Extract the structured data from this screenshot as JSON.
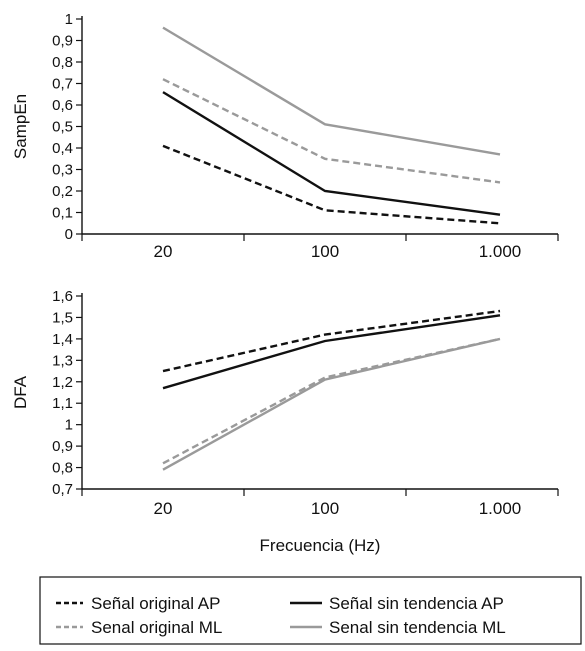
{
  "chart_data": [
    {
      "type": "line",
      "categories": [
        "20",
        "100",
        "1.000"
      ],
      "ylabel": "SampEn",
      "xlabel": "",
      "ylim": [
        0,
        1
      ],
      "yticks": [
        "0",
        "0,1",
        "0,2",
        "0,3",
        "0,4",
        "0,5",
        "0,6",
        "0,7",
        "0,8",
        "0,9",
        "1"
      ],
      "series": [
        {
          "name": "Señal original AP",
          "values": [
            0.41,
            0.11,
            0.05
          ],
          "color": "#111111",
          "dash": true
        },
        {
          "name": "Senal original ML",
          "values": [
            0.72,
            0.35,
            0.24
          ],
          "color": "#9a9a9a",
          "dash": true
        },
        {
          "name": "Señal sin tendencia AP",
          "values": [
            0.66,
            0.2,
            0.09
          ],
          "color": "#111111",
          "dash": false
        },
        {
          "name": "Senal sin tendencia ML",
          "values": [
            0.96,
            0.51,
            0.37
          ],
          "color": "#9a9a9a",
          "dash": false
        }
      ]
    },
    {
      "type": "line",
      "categories": [
        "20",
        "100",
        "1.000"
      ],
      "ylabel": "DFA",
      "xlabel": "Frecuencia (Hz)",
      "ylim": [
        0.7,
        1.6
      ],
      "yticks": [
        "0,7",
        "0,8",
        "0,9",
        "1",
        "1,1",
        "1,2",
        "1,3",
        "1,4",
        "1,5",
        "1,6"
      ],
      "series": [
        {
          "name": "Señal original AP",
          "values": [
            1.25,
            1.42,
            1.53
          ],
          "color": "#111111",
          "dash": true
        },
        {
          "name": "Senal original ML",
          "values": [
            0.82,
            1.22,
            1.4
          ],
          "color": "#9a9a9a",
          "dash": true
        },
        {
          "name": "Señal sin tendencia AP",
          "values": [
            1.17,
            1.39,
            1.51
          ],
          "color": "#111111",
          "dash": false
        },
        {
          "name": "Senal sin tendencia ML",
          "values": [
            0.79,
            1.21,
            1.4
          ],
          "color": "#9a9a9a",
          "dash": false
        }
      ]
    }
  ],
  "legend": {
    "items": [
      {
        "label": "Señal original AP",
        "color": "#111111",
        "dash": true
      },
      {
        "label": "Señal sin tendencia AP",
        "color": "#111111",
        "dash": false
      },
      {
        "label": "Senal original ML",
        "color": "#9a9a9a",
        "dash": true
      },
      {
        "label": "Senal sin tendencia ML",
        "color": "#9a9a9a",
        "dash": false
      }
    ]
  }
}
